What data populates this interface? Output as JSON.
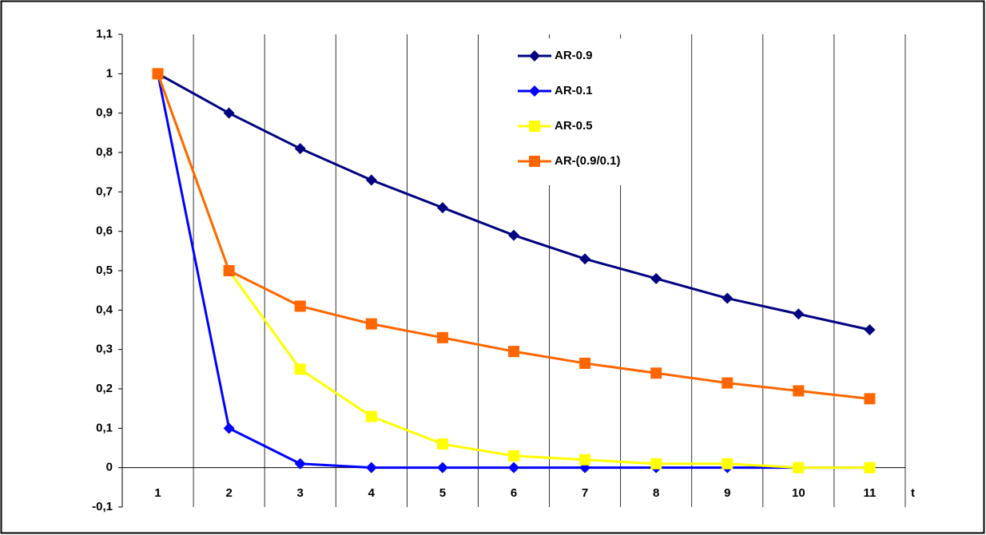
{
  "chart_data": {
    "type": "line",
    "x_label": "t",
    "categories": [
      "1",
      "2",
      "3",
      "4",
      "5",
      "6",
      "7",
      "8",
      "9",
      "10",
      "11"
    ],
    "series": [
      {
        "name": "AR-0.9",
        "color": "#000080",
        "marker": "diamond",
        "values": [
          1,
          0.9,
          0.81,
          0.73,
          0.66,
          0.59,
          0.53,
          0.48,
          0.43,
          0.39,
          0.35
        ]
      },
      {
        "name": "AR-0.1",
        "color": "#0000ff",
        "marker": "diamond",
        "values": [
          1,
          0.1,
          0.01,
          0,
          0,
          0,
          0,
          0,
          0,
          0,
          0
        ]
      },
      {
        "name": "AR-0.5",
        "color": "#ffff00",
        "marker": "square",
        "values": [
          1,
          0.5,
          0.25,
          0.13,
          0.06,
          0.03,
          0.02,
          0.01,
          0.01,
          0,
          0
        ]
      },
      {
        "name": "AR-(0.9/0.1)",
        "color": "#ff6600",
        "marker": "square",
        "values": [
          1,
          0.5,
          0.41,
          0.365,
          0.33,
          0.295,
          0.265,
          0.24,
          0.215,
          0.195,
          0.175
        ]
      }
    ],
    "ylim": [
      -0.1,
      1.1
    ],
    "yticks": [
      {
        "value": -0.1,
        "label": "-0,1"
      },
      0,
      {
        "value": 0.1,
        "label": "0,1"
      },
      {
        "value": 0.2,
        "label": "0,2"
      },
      {
        "value": 0.3,
        "label": "0,3"
      },
      {
        "value": 0.4,
        "label": "0,4"
      },
      {
        "value": 0.5,
        "label": "0,5"
      },
      {
        "value": 0.6,
        "label": "0,6"
      },
      {
        "value": 0.7,
        "label": "0,7"
      },
      {
        "value": 0.8,
        "label": "0,8"
      },
      {
        "value": 0.9,
        "label": "0,9"
      },
      1,
      {
        "value": 1.1,
        "label": "1,1"
      }
    ],
    "grid": false,
    "category_separators": true,
    "legend": "top-right"
  }
}
